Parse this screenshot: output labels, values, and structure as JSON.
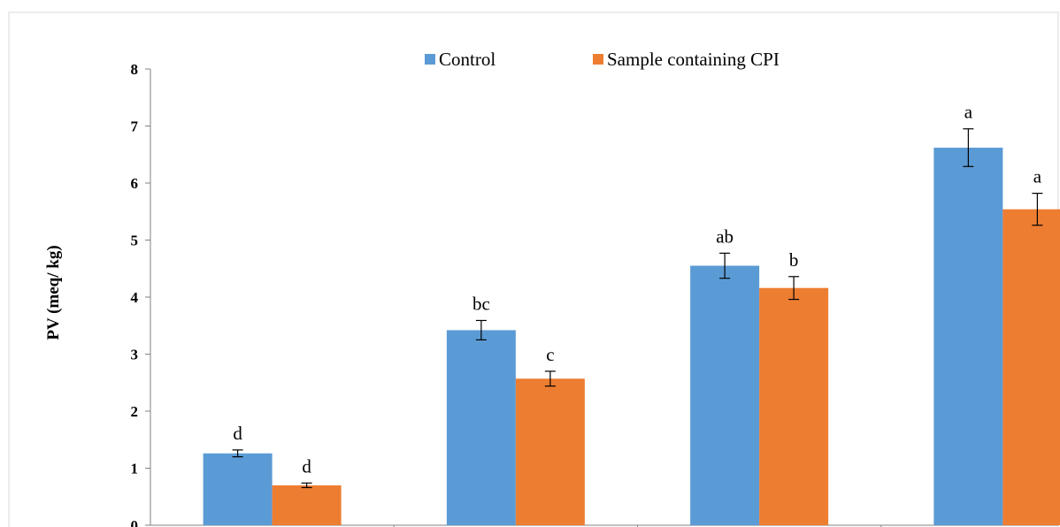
{
  "chart_data": {
    "type": "bar",
    "ylabel": "PV (meq/ kg)",
    "ylim": [
      0,
      8
    ],
    "yticks": [
      "0",
      "1",
      "2",
      "3",
      "4",
      "5",
      "6",
      "7",
      "8"
    ],
    "categories": [
      "",
      "",
      "",
      ""
    ],
    "grid": false,
    "legend_position": "top",
    "series": [
      {
        "name": "Control",
        "color": "#5b9bd5",
        "values": [
          1.26,
          3.42,
          4.55,
          6.62
        ],
        "error": [
          0.06,
          0.17,
          0.22,
          0.33
        ],
        "labels": [
          "d",
          "bc",
          "ab",
          "a"
        ]
      },
      {
        "name": "Sample containing CPI",
        "color": "#ed7d31",
        "values": [
          0.7,
          2.57,
          4.16,
          5.54
        ],
        "error": [
          0.04,
          0.13,
          0.2,
          0.28
        ],
        "labels": [
          "d",
          "c",
          "b",
          "a"
        ]
      }
    ]
  }
}
